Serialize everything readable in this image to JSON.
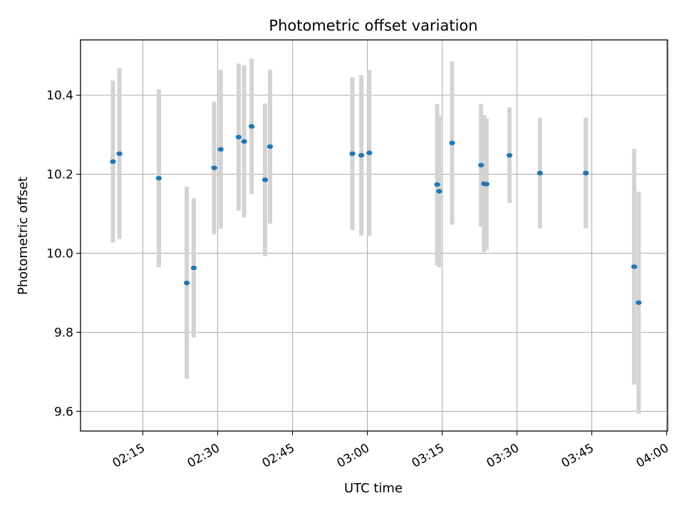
{
  "chart_data": {
    "type": "scatter",
    "title": "Photometric offset variation",
    "xlabel": "UTC time",
    "ylabel": "Photometric offset",
    "x_ticks": [
      "02:15",
      "02:30",
      "02:45",
      "03:00",
      "03:15",
      "03:30",
      "03:45",
      "04:00"
    ],
    "y_ticks": [
      "9.6",
      "9.8",
      "10.0",
      "10.2",
      "10.4"
    ],
    "xlim": [
      "02:02.5",
      "04:00.2"
    ],
    "ylim": [
      9.55,
      10.54
    ],
    "grid": true,
    "colors": {
      "point": "#1f77b4",
      "errorbar": "#d3d3d3",
      "grid": "#b0b0b0"
    },
    "series": [
      {
        "points": [
          {
            "x": "02:09.0",
            "y": 10.232,
            "yerr": 0.205
          },
          {
            "x": "02:10.3",
            "y": 10.252,
            "yerr": 0.216
          },
          {
            "x": "02:18.2",
            "y": 10.19,
            "yerr": 0.225
          },
          {
            "x": "02:23.8",
            "y": 9.925,
            "yerr": 0.243
          },
          {
            "x": "02:25.2",
            "y": 9.963,
            "yerr": 0.176
          },
          {
            "x": "02:29.3",
            "y": 10.216,
            "yerr": 0.168
          },
          {
            "x": "02:30.6",
            "y": 10.263,
            "yerr": 0.201
          },
          {
            "x": "02:34.2",
            "y": 10.294,
            "yerr": 0.186
          },
          {
            "x": "02:35.3",
            "y": 10.283,
            "yerr": 0.193
          },
          {
            "x": "02:36.8",
            "y": 10.321,
            "yerr": 0.171
          },
          {
            "x": "02:39.5",
            "y": 10.186,
            "yerr": 0.193
          },
          {
            "x": "02:40.5",
            "y": 10.27,
            "yerr": 0.195
          },
          {
            "x": "02:57.0",
            "y": 10.252,
            "yerr": 0.193
          },
          {
            "x": "02:58.8",
            "y": 10.248,
            "yerr": 0.203
          },
          {
            "x": "03:00.4",
            "y": 10.254,
            "yerr": 0.21
          },
          {
            "x": "03:14.0",
            "y": 10.174,
            "yerr": 0.204
          },
          {
            "x": "03:14.4",
            "y": 10.157,
            "yerr": 0.192
          },
          {
            "x": "03:17.0",
            "y": 10.279,
            "yerr": 0.207
          },
          {
            "x": "03:22.8",
            "y": 10.223,
            "yerr": 0.155
          },
          {
            "x": "03:23.4",
            "y": 10.176,
            "yerr": 0.173
          },
          {
            "x": "03:23.9",
            "y": 10.175,
            "yerr": 0.167
          },
          {
            "x": "03:28.5",
            "y": 10.248,
            "yerr": 0.121
          },
          {
            "x": "03:34.6",
            "y": 10.203,
            "yerr": 0.14
          },
          {
            "x": "03:43.8",
            "y": 10.203,
            "yerr": 0.14
          },
          {
            "x": "03:53.5",
            "y": 9.966,
            "yerr": 0.298
          },
          {
            "x": "03:54.4",
            "y": 9.875,
            "yerr": 0.281
          }
        ]
      }
    ]
  }
}
